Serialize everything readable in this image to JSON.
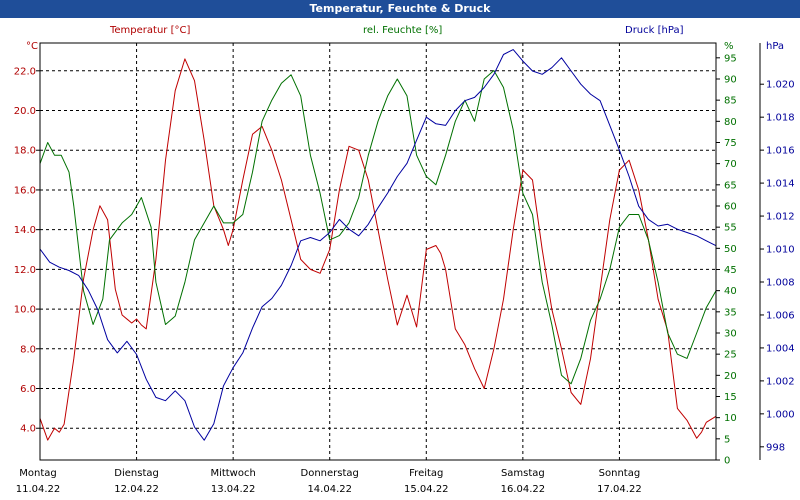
{
  "window": {
    "title": "Temperatur, Feuchte & Druck"
  },
  "chart_data": {
    "type": "line",
    "title": "Temperatur, Feuchte & Druck",
    "x_labels": [
      {
        "day": "Montag",
        "date": "11.04.22"
      },
      {
        "day": "Dienstag",
        "date": "12.04.22"
      },
      {
        "day": "Mittwoch",
        "date": "13.04.22"
      },
      {
        "day": "Donnerstag",
        "date": "14.04.22"
      },
      {
        "day": "Freitag",
        "date": "15.04.22"
      },
      {
        "day": "Samstag",
        "date": "16.04.22"
      },
      {
        "day": "Sonntag",
        "date": "17.04.22"
      }
    ],
    "xlim": [
      0,
      7
    ],
    "grid": true,
    "axes": {
      "temp": {
        "unit": "°C",
        "ylim": [
          2.4,
          23.4
        ],
        "ticks": [
          "4.0",
          "6.0",
          "8.0",
          "10.0",
          "12.0",
          "14.0",
          "16.0",
          "18.0",
          "20.0",
          "22.0"
        ],
        "color": "#b00000"
      },
      "hum": {
        "unit": "%",
        "ylim": [
          0,
          98.5
        ],
        "ticks": [
          "0",
          "5",
          "10",
          "15",
          "20",
          "25",
          "30",
          "35",
          "40",
          "45",
          "50",
          "55",
          "60",
          "65",
          "70",
          "75",
          "80",
          "85",
          "90",
          "95"
        ],
        "color": "#007000"
      },
      "press": {
        "unit": "hPa",
        "ylim": [
          997.2,
          1022.5
        ],
        "ticks": [
          "998",
          "1.000",
          "1.002",
          "1.004",
          "1.006",
          "1.008",
          "1.010",
          "1.012",
          "1.014",
          "1.016",
          "1.018",
          "1.020"
        ],
        "color": "#00009a"
      }
    },
    "series": [
      {
        "name": "Temperatur [°C]",
        "axis": "temp",
        "color": "#c00000",
        "x": [
          0,
          0.08,
          0.15,
          0.2,
          0.25,
          0.35,
          0.45,
          0.55,
          0.62,
          0.7,
          0.78,
          0.85,
          0.95,
          1.0,
          1.05,
          1.1,
          1.2,
          1.3,
          1.4,
          1.5,
          1.6,
          1.7,
          1.8,
          1.9,
          1.95,
          2.0,
          2.1,
          2.2,
          2.3,
          2.4,
          2.5,
          2.6,
          2.7,
          2.8,
          2.9,
          3.0,
          3.1,
          3.2,
          3.3,
          3.4,
          3.5,
          3.6,
          3.7,
          3.8,
          3.9,
          4.0,
          4.1,
          4.15,
          4.2,
          4.3,
          4.4,
          4.5,
          4.6,
          4.7,
          4.8,
          4.9,
          5.0,
          5.1,
          5.2,
          5.3,
          5.4,
          5.5,
          5.6,
          5.7,
          5.8,
          5.9,
          6.0,
          6.1,
          6.2,
          6.3,
          6.4,
          6.5,
          6.6,
          6.7,
          6.8,
          6.85,
          6.9,
          7.0
        ],
        "values": [
          4.5,
          3.4,
          4.0,
          3.8,
          4.2,
          7.5,
          11.5,
          14.0,
          15.2,
          14.5,
          11.0,
          9.7,
          9.3,
          9.5,
          9.2,
          9.0,
          12.5,
          17.5,
          21.0,
          22.6,
          21.5,
          18.5,
          15.2,
          14.0,
          13.2,
          14.0,
          16.5,
          18.8,
          19.2,
          18.0,
          16.5,
          14.5,
          12.5,
          12.0,
          11.8,
          13.0,
          16.0,
          18.2,
          18.0,
          16.5,
          14.0,
          11.5,
          9.2,
          10.7,
          9.1,
          13.0,
          13.2,
          12.8,
          12.0,
          9.0,
          8.2,
          7.0,
          6.0,
          8.0,
          10.5,
          14.0,
          17.0,
          16.5,
          13.0,
          10.0,
          8.0,
          5.8,
          5.2,
          7.5,
          11.0,
          14.5,
          17.0,
          17.5,
          16.0,
          13.5,
          10.5,
          8.9,
          5.0,
          4.4,
          3.5,
          3.8,
          4.3,
          4.6
        ],
        "x_shift": 0
      },
      {
        "name": "rel. Feuchte [%]",
        "axis": "hum",
        "color": "#007000",
        "x": [
          0,
          0.08,
          0.15,
          0.22,
          0.3,
          0.35,
          0.45,
          0.55,
          0.65,
          0.72,
          0.85,
          0.95,
          1.05,
          1.15,
          1.2,
          1.3,
          1.4,
          1.5,
          1.6,
          1.7,
          1.8,
          1.9,
          2.0,
          2.1,
          2.2,
          2.3,
          2.4,
          2.5,
          2.6,
          2.7,
          2.8,
          2.9,
          3.0,
          3.1,
          3.2,
          3.3,
          3.4,
          3.5,
          3.6,
          3.7,
          3.8,
          3.9,
          4.0,
          4.1,
          4.2,
          4.3,
          4.4,
          4.5,
          4.6,
          4.7,
          4.8,
          4.9,
          5.0,
          5.1,
          5.2,
          5.3,
          5.4,
          5.5,
          5.6,
          5.7,
          5.8,
          5.9,
          6.0,
          6.1,
          6.2,
          6.3,
          6.4,
          6.5,
          6.6,
          6.7,
          6.8,
          6.9,
          7.0
        ],
        "values": [
          70,
          75,
          72,
          72,
          68,
          60,
          40,
          32,
          38,
          52,
          56,
          58,
          62,
          55,
          42,
          32,
          34,
          42,
          52,
          56,
          60,
          56,
          56,
          58,
          68,
          80,
          85,
          89,
          91,
          86,
          72,
          63,
          52,
          53,
          56,
          62,
          72,
          80,
          86,
          90,
          86,
          72,
          67,
          65,
          72,
          80,
          85,
          80,
          90,
          92,
          88,
          78,
          63,
          58,
          42,
          32,
          20,
          18,
          24,
          33,
          38,
          45,
          55,
          58,
          58,
          52,
          42,
          30,
          25,
          24,
          30,
          36,
          40
        ],
        "x_shift": 0
      },
      {
        "name": "Druck [hPa]",
        "axis": "press",
        "color": "#0000a0",
        "x": [
          0,
          0.1,
          0.2,
          0.3,
          0.4,
          0.5,
          0.6,
          0.7,
          0.8,
          0.9,
          1.0,
          1.1,
          1.2,
          1.3,
          1.4,
          1.5,
          1.6,
          1.7,
          1.8,
          1.9,
          2.0,
          2.1,
          2.2,
          2.3,
          2.4,
          2.5,
          2.6,
          2.7,
          2.8,
          2.9,
          3.0,
          3.1,
          3.2,
          3.3,
          3.4,
          3.5,
          3.6,
          3.7,
          3.8,
          3.9,
          4.0,
          4.1,
          4.2,
          4.3,
          4.4,
          4.5,
          4.6,
          4.7,
          4.8,
          4.9,
          5.0,
          5.1,
          5.2,
          5.3,
          5.4,
          5.5,
          5.6,
          5.7,
          5.8,
          5.9,
          6.0,
          6.1,
          6.2,
          6.3,
          6.4,
          6.5,
          6.6,
          6.7,
          6.8,
          6.9,
          7.0
        ],
        "values": [
          1010.0,
          1009.2,
          1008.9,
          1008.7,
          1008.4,
          1007.5,
          1006.3,
          1004.5,
          1003.7,
          1004.4,
          1003.6,
          1002.1,
          1001.0,
          1000.8,
          1001.4,
          1000.8,
          999.2,
          998.4,
          999.4,
          1001.7,
          1002.8,
          1003.7,
          1005.2,
          1006.5,
          1007.0,
          1007.8,
          1009.0,
          1010.5,
          1010.7,
          1010.5,
          1011.0,
          1011.8,
          1011.2,
          1010.8,
          1011.5,
          1012.5,
          1013.4,
          1014.4,
          1015.2,
          1016.6,
          1018.0,
          1017.6,
          1017.5,
          1018.4,
          1019.0,
          1019.2,
          1019.8,
          1020.6,
          1021.8,
          1022.1,
          1021.4,
          1020.8,
          1020.6,
          1021.0,
          1021.6,
          1020.8,
          1020.0,
          1019.4,
          1019.0,
          1017.5,
          1016.0,
          1014.4,
          1012.6,
          1011.8,
          1011.4,
          1011.5,
          1011.2,
          1011.0,
          1010.8,
          1010.5,
          1010.2
        ],
        "x_shift": 0
      }
    ]
  }
}
